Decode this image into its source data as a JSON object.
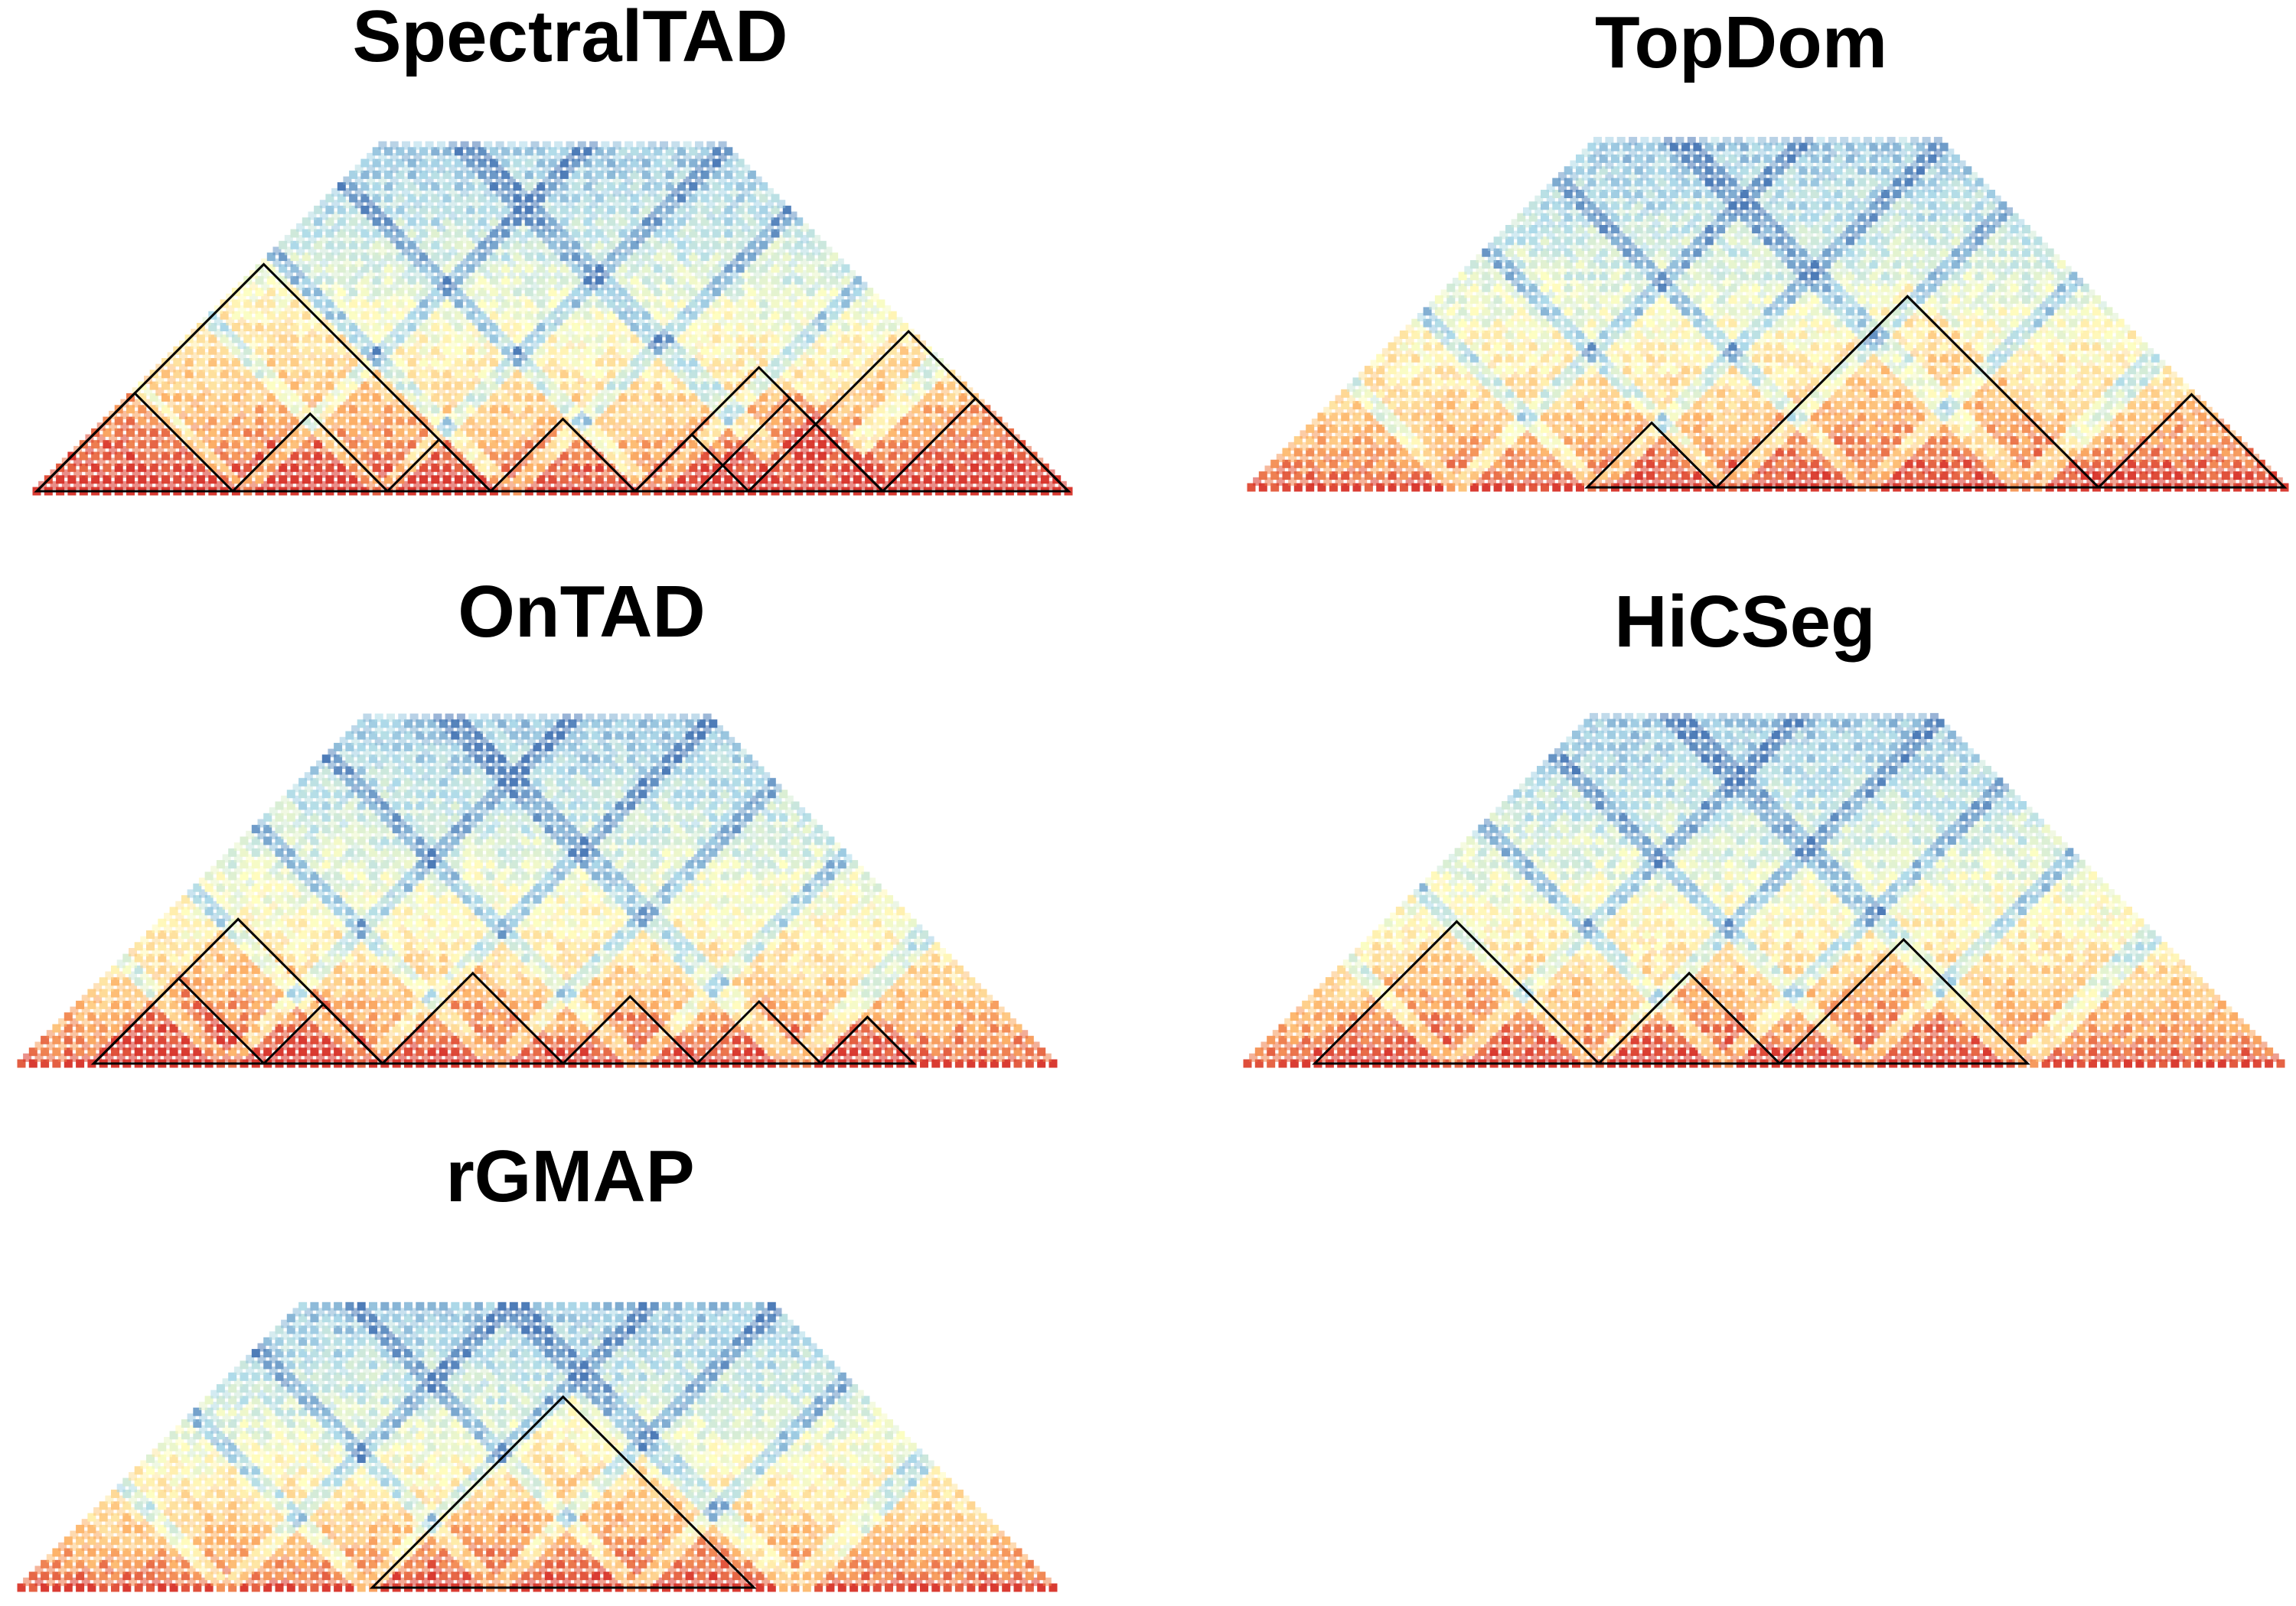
{
  "panels": [
    {
      "id": "spectraltad",
      "title": "SpectralTAD",
      "tads": [
        [
          0.0,
          0.19
        ],
        [
          0.0,
          0.44
        ],
        [
          0.19,
          0.34
        ],
        [
          0.34,
          0.44
        ],
        [
          0.44,
          0.58
        ],
        [
          0.58,
          0.69
        ],
        [
          0.69,
          0.82
        ],
        [
          0.64,
          0.82
        ],
        [
          0.58,
          0.82
        ],
        [
          0.82,
          1.0
        ],
        [
          0.69,
          1.0
        ]
      ]
    },
    {
      "id": "topdom",
      "title": "TopDom",
      "tads": [
        [
          0.325,
          0.45
        ],
        [
          0.45,
          0.82
        ],
        [
          0.82,
          1.0
        ]
      ]
    },
    {
      "id": "ontad",
      "title": "OnTAD",
      "tads": [
        [
          0.07,
          0.235
        ],
        [
          0.07,
          0.35
        ],
        [
          0.235,
          0.35
        ],
        [
          0.35,
          0.525
        ],
        [
          0.525,
          0.655
        ],
        [
          0.655,
          0.775
        ],
        [
          0.775,
          0.865
        ]
      ]
    },
    {
      "id": "hicseg",
      "title": "HiCSeg",
      "tads": [
        [
          0.065,
          0.34
        ],
        [
          0.34,
          0.515
        ],
        [
          0.515,
          0.755
        ]
      ]
    },
    {
      "id": "rgmap",
      "title": "rGMAP",
      "tads": [
        [
          0.34,
          0.71
        ]
      ]
    }
  ],
  "colors": {
    "low": "#4575b4",
    "mid_low": "#abd9e9",
    "mid": "#ffffbf",
    "mid_high": "#fdae61",
    "high": "#d73027",
    "tad_outline": "#000000"
  }
}
